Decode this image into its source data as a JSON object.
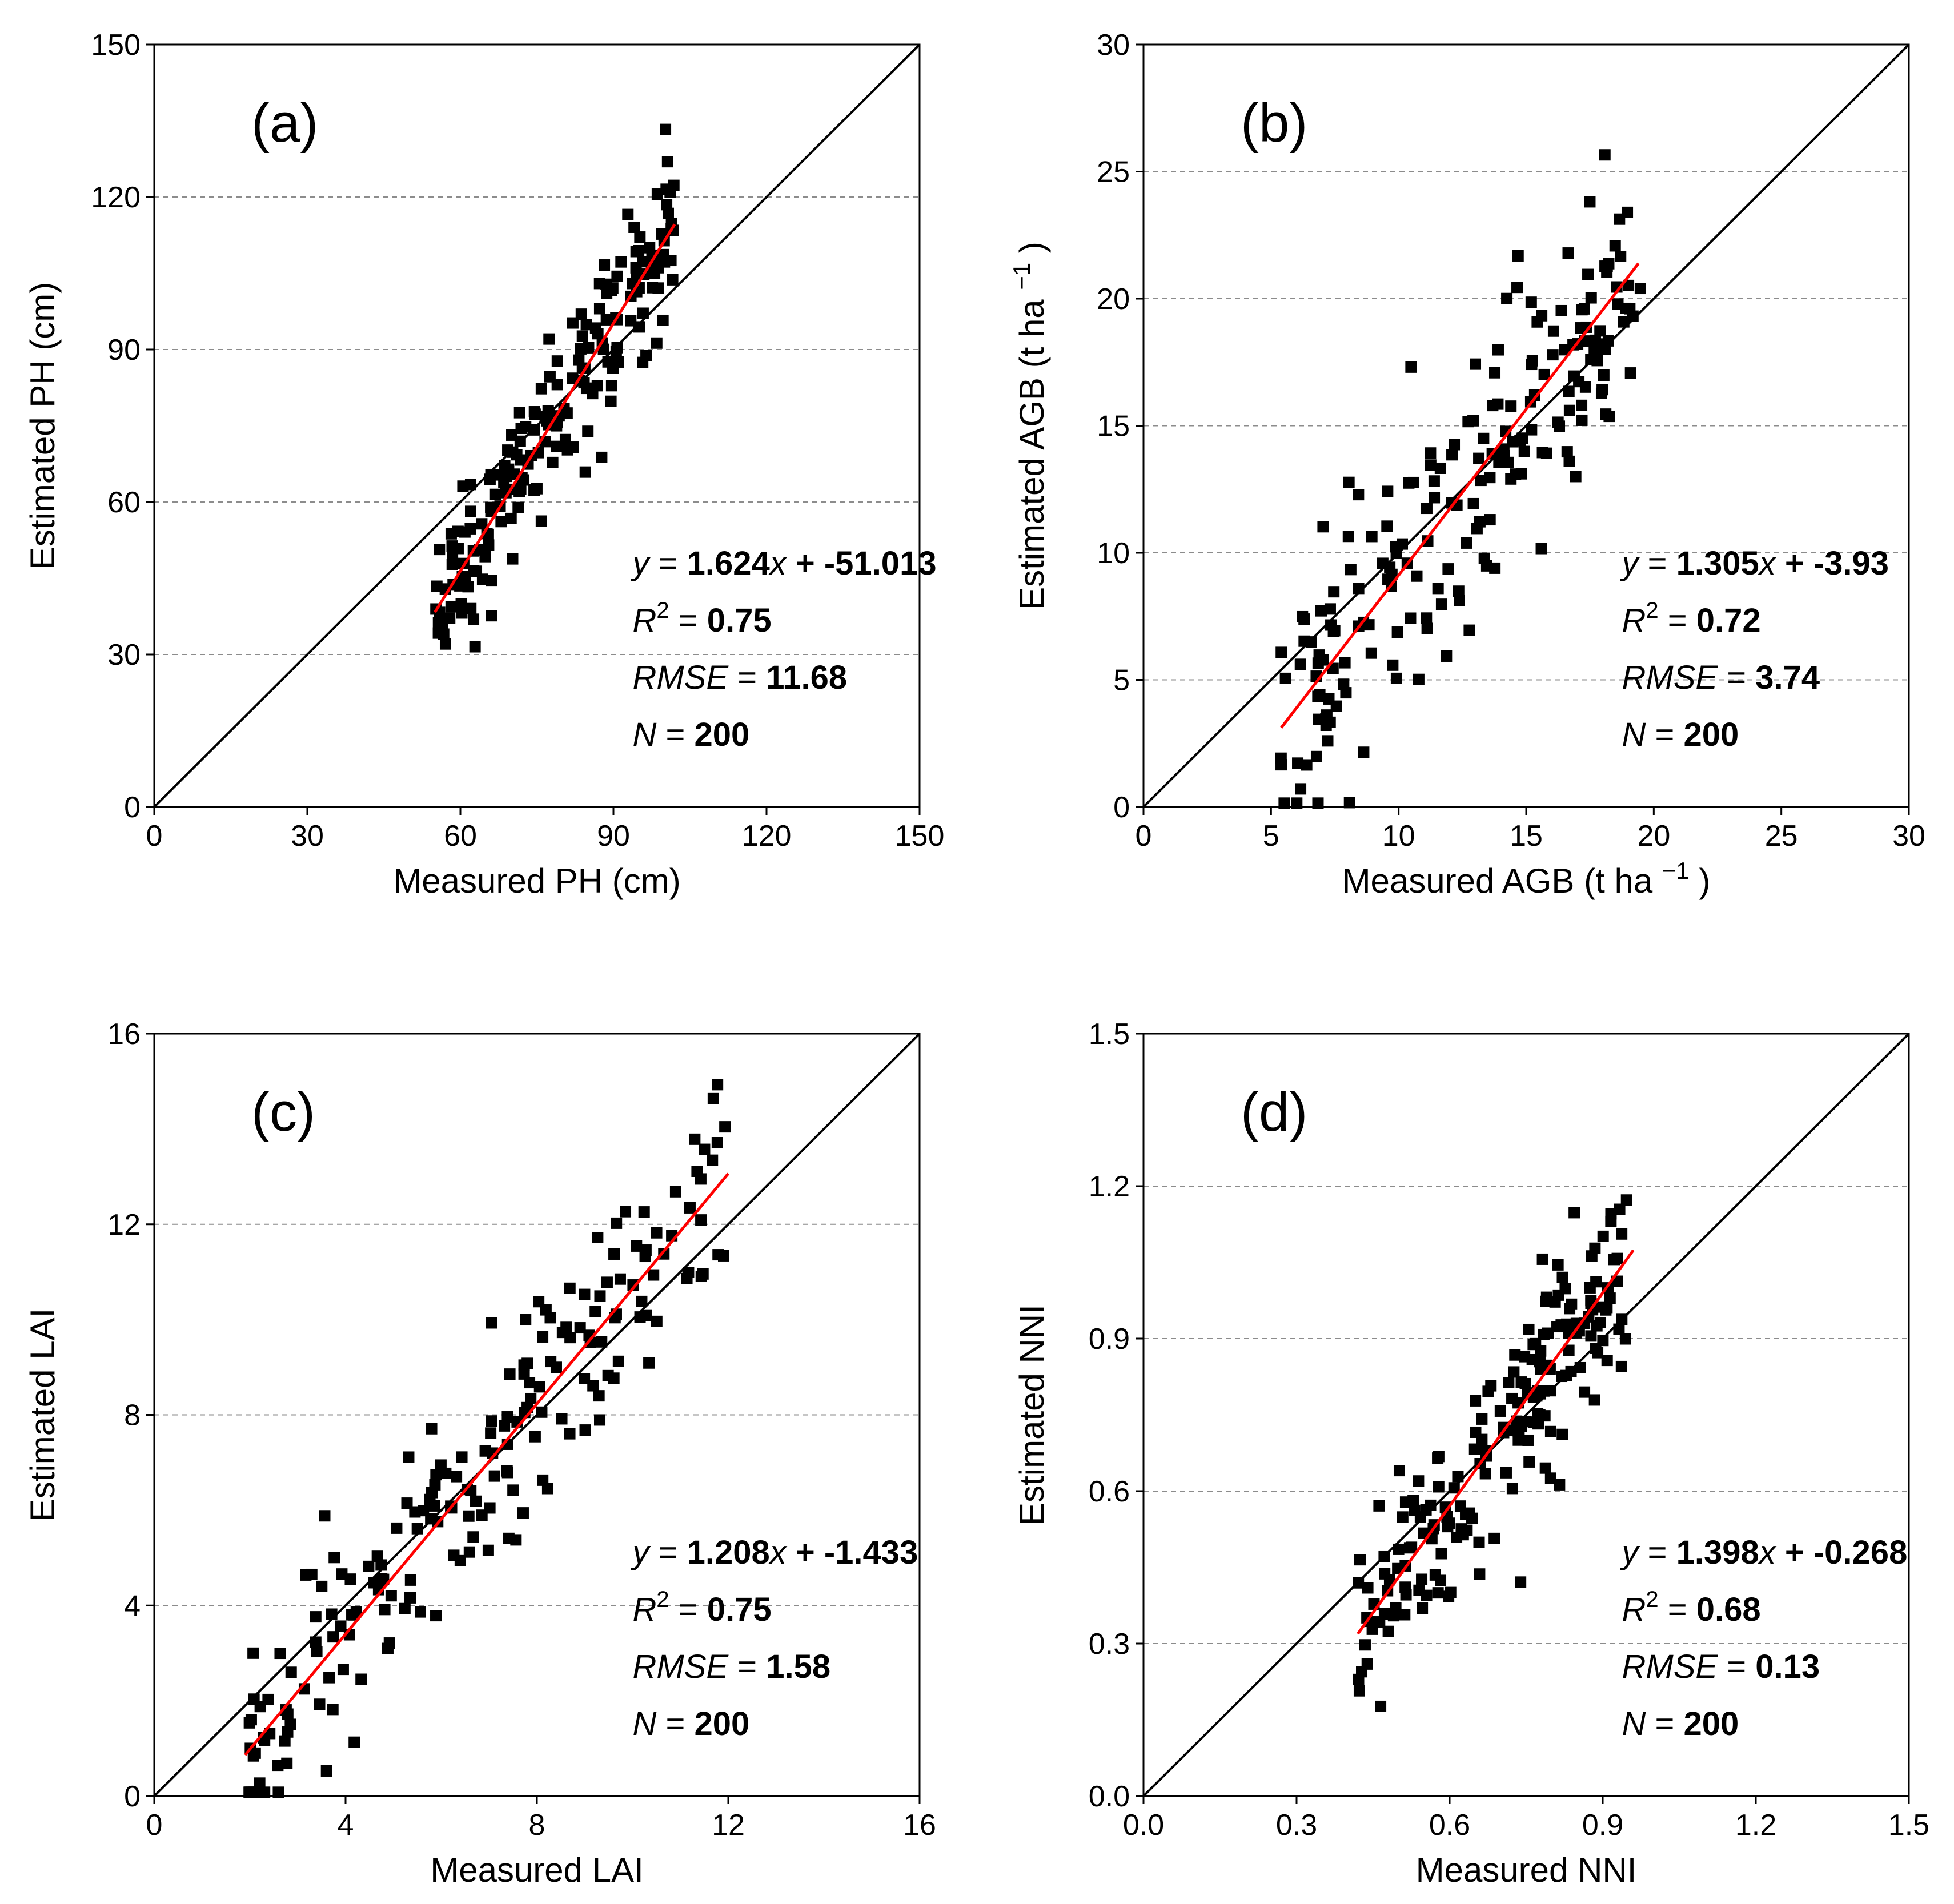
{
  "figure": {
    "colors": {
      "points": "#000000",
      "fit_line": "#ff0000",
      "identity_line": "#000000",
      "grid": "#8c8c8c"
    }
  },
  "chart_data": [
    {
      "id": "a",
      "type": "scatter",
      "panel_label": "(a)",
      "xlabel": "Measured PH (cm)",
      "ylabel": "Estimated PH (cm)",
      "xlim": [
        0,
        150
      ],
      "ylim": [
        0,
        150
      ],
      "xticks": [
        "0",
        "30",
        "60",
        "90",
        "120",
        "150"
      ],
      "yticks": [
        "0",
        "30",
        "60",
        "90",
        "120",
        "150"
      ],
      "grid": "horizontal dashed",
      "identity_line": true,
      "fit": {
        "slope": 1.624,
        "intercept": -51.013,
        "x_range": [
          55,
          102
        ]
      },
      "stats": {
        "eq_slope": "1.624",
        "eq_intercept": "-51.013",
        "r2": "0.75",
        "rmse": "11.68",
        "n": "200"
      },
      "points_summary": {
        "n": 200,
        "x_range": [
          55,
          102
        ],
        "residual_sd": 7.8
      }
    },
    {
      "id": "b",
      "type": "scatter",
      "panel_label": "(b)",
      "xlabel": "Measured AGB",
      "ylabel": "Estimated AGB",
      "units": "(t ha",
      "unit_exp": "−1",
      "xlim": [
        0,
        30
      ],
      "ylim": [
        0,
        30
      ],
      "xticks": [
        "0",
        "5",
        "10",
        "15",
        "20",
        "25",
        "30"
      ],
      "yticks": [
        "0",
        "5",
        "10",
        "15",
        "20",
        "25",
        "30"
      ],
      "grid": "horizontal dashed",
      "identity_line": true,
      "fit": {
        "slope": 1.305,
        "intercept": -3.93,
        "x_range": [
          5.4,
          19.4
        ]
      },
      "stats": {
        "eq_slope": "1.305",
        "eq_intercept": "-3.93",
        "r2": "0.72",
        "rmse": "3.74",
        "n": "200"
      },
      "points_summary": {
        "n": 200,
        "x_range": [
          5.3,
          19.5
        ],
        "residual_sd": 2.7
      }
    },
    {
      "id": "c",
      "type": "scatter",
      "panel_label": "(c)",
      "xlabel": "Measured LAI",
      "ylabel": "Estimated LAI",
      "xlim": [
        0,
        16
      ],
      "ylim": [
        0,
        16
      ],
      "xticks": [
        "0",
        "4",
        "8",
        "12",
        "16"
      ],
      "yticks": [
        "0",
        "4",
        "8",
        "12",
        "16"
      ],
      "grid": "horizontal dashed",
      "identity_line": true,
      "fit": {
        "slope": 1.208,
        "intercept": -1.433,
        "x_range": [
          1.9,
          12.0
        ]
      },
      "stats": {
        "eq_slope": "1.208",
        "eq_intercept": "-1.433",
        "r2": "0.75",
        "rmse": "1.58",
        "n": "200"
      },
      "points_summary": {
        "n": 200,
        "x_range": [
          1.9,
          12.0
        ],
        "residual_sd": 1.15
      }
    },
    {
      "id": "d",
      "type": "scatter",
      "panel_label": "(d)",
      "xlabel": "Measured NNI",
      "ylabel": "Estimated NNI",
      "xlim": [
        0,
        1.5
      ],
      "ylim": [
        0,
        1.5
      ],
      "xticks": [
        "0.0",
        "0.3",
        "0.6",
        "0.9",
        "1.2",
        "1.5"
      ],
      "yticks": [
        "0.0",
        "0.3",
        "0.6",
        "0.9",
        "1.2",
        "1.5"
      ],
      "grid": "horizontal dashed",
      "identity_line": true,
      "fit": {
        "slope": 1.398,
        "intercept": -0.268,
        "x_range": [
          0.42,
          0.96
        ]
      },
      "stats": {
        "eq_slope": "1.398",
        "eq_intercept": "-0.268",
        "r2": "0.68",
        "rmse": "0.13",
        "n": "200"
      },
      "points_summary": {
        "n": 200,
        "x_range": [
          0.42,
          0.95
        ],
        "residual_sd": 0.095
      }
    }
  ]
}
